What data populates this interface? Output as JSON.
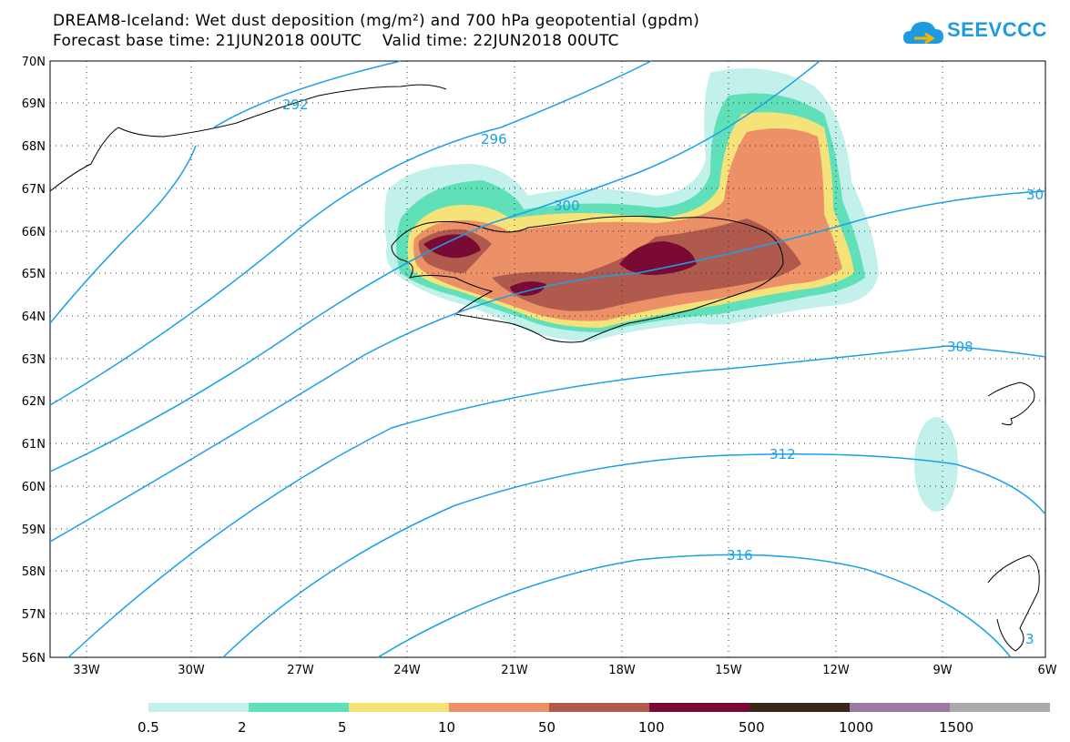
{
  "header": {
    "title_line1": "DREAM8-Iceland: Wet dust deposition (mg/m²) and 700 hPa geopotential (gpdm)",
    "title_line2": "Forecast base time: 21JUN2018 00UTC    Valid time: 22JUN2018 00UTC",
    "logo_text": "SEEVCCC",
    "logo_icon": "cloud-icon"
  },
  "map": {
    "lat_labels": [
      "70N",
      "69N",
      "68N",
      "67N",
      "66N",
      "65N",
      "64N",
      "63N",
      "62N",
      "61N",
      "60N",
      "59N",
      "58N",
      "57N",
      "56N"
    ],
    "lon_labels": [
      "33W",
      "30W",
      "27W",
      "24W",
      "21W",
      "18W",
      "15W",
      "12W",
      "9W",
      "6W"
    ],
    "contour_labels": [
      "292",
      "296",
      "300",
      "308",
      "312",
      "316",
      "30",
      "3"
    ],
    "contour_color": "#1aa0e8",
    "grid": true
  },
  "legend": {
    "labels": [
      "0.5",
      "2",
      "5",
      "10",
      "50",
      "100",
      "500",
      "1000",
      "1500"
    ],
    "colors": [
      "#c2f0ea",
      "#5fe0b8",
      "#f5e37a",
      "#ec9068",
      "#b05a4e",
      "#7a0a33",
      "#3b2718",
      "#9a7aa0",
      "#aaaaaa"
    ]
  }
}
